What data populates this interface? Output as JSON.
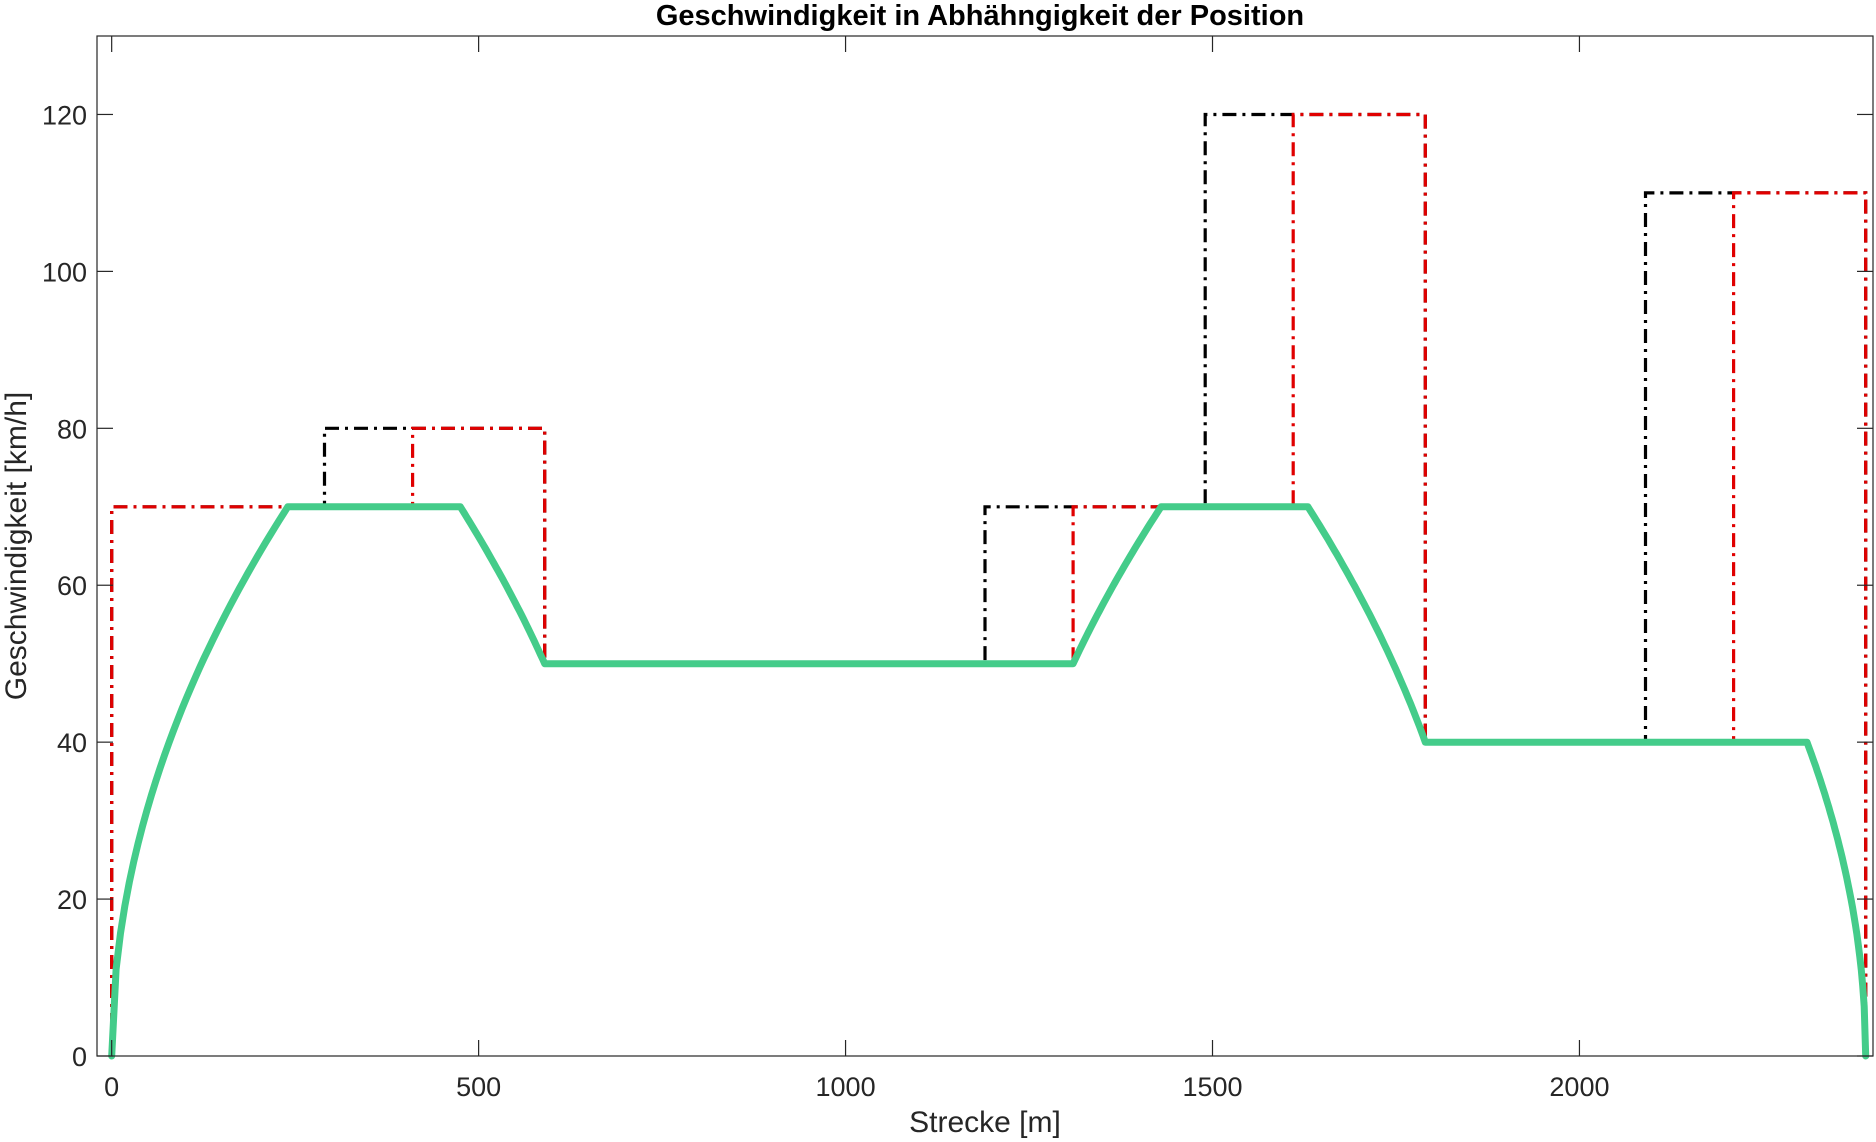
{
  "chart_data": {
    "type": "line",
    "title": "Geschwindigkeit in Abhähngigkeit der Position",
    "xlabel": "Strecke [m]",
    "ylabel": "Geschwindigkeit [km/h]",
    "xlim": [
      -20,
      2400
    ],
    "ylim": [
      0,
      130
    ],
    "xticks": [
      0,
      500,
      1000,
      1500,
      2000
    ],
    "yticks": [
      0,
      20,
      40,
      60,
      80,
      100,
      120
    ],
    "grid": false,
    "legend": "none",
    "series": [
      {
        "style": "dash-dot",
        "color": "#000000",
        "x": [
          0,
          0,
          290,
          290,
          590,
          590,
          890,
          890,
          1190,
          1190,
          1490,
          1490,
          1790,
          1790,
          2090,
          2090,
          2390,
          2390
        ],
        "y": [
          0,
          70,
          70,
          80,
          80,
          50,
          50,
          50,
          50,
          70,
          70,
          120,
          120,
          40,
          40,
          110,
          110,
          0
        ]
      },
      {
        "style": "dash-dot",
        "color": "#e00000",
        "x": [
          0,
          0,
          410,
          410,
          590,
          590,
          1010,
          1010,
          1310,
          1310,
          1610,
          1610,
          1790,
          1790,
          2210,
          2210,
          2390,
          2390
        ],
        "y": [
          0,
          70,
          70,
          80,
          80,
          50,
          50,
          50,
          50,
          70,
          70,
          120,
          120,
          40,
          40,
          110,
          110,
          0
        ]
      },
      {
        "style": "solid",
        "color": "#44cc8a",
        "segments": [
          {
            "shape": "sqrt-accel",
            "x": [
              0,
              240
            ],
            "y": [
              0,
              70
            ]
          },
          {
            "shape": "linear",
            "x": [
              240,
              475
            ],
            "y": [
              70,
              70
            ]
          },
          {
            "shape": "sqrt-brake",
            "x": [
              475,
              590
            ],
            "y": [
              70,
              50
            ]
          },
          {
            "shape": "linear",
            "x": [
              590,
              1310
            ],
            "y": [
              50,
              50
            ]
          },
          {
            "shape": "sqrt-accel",
            "x": [
              1310,
              1430
            ],
            "y": [
              50,
              70
            ]
          },
          {
            "shape": "linear",
            "x": [
              1430,
              1630
            ],
            "y": [
              70,
              70
            ]
          },
          {
            "shape": "sqrt-brake",
            "x": [
              1630,
              1790
            ],
            "y": [
              70,
              40
            ]
          },
          {
            "shape": "linear",
            "x": [
              1790,
              2310
            ],
            "y": [
              40,
              40
            ]
          },
          {
            "shape": "sqrt-brake",
            "x": [
              2310,
              2390
            ],
            "y": [
              40,
              0
            ]
          }
        ]
      }
    ]
  }
}
